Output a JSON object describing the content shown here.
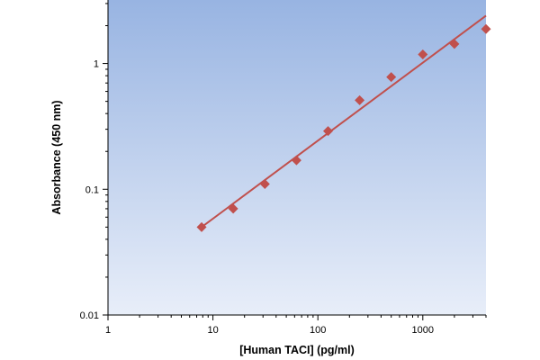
{
  "chart_data": {
    "type": "scatter",
    "title": "",
    "xlabel": "[Human TACI] (pg/ml)",
    "ylabel": "Absorbance (450 nm)",
    "x_scale": "log",
    "y_scale": "log",
    "xlim": [
      1,
      4000
    ],
    "ylim": [
      0.01,
      3.2
    ],
    "x_ticks": [
      1,
      10,
      100,
      1000
    ],
    "x_tick_labels": [
      "1",
      "10",
      "100",
      "1000"
    ],
    "y_ticks": [
      0.01,
      0.1,
      1
    ],
    "y_tick_labels": [
      "0.01",
      "0.1",
      "1"
    ],
    "grid": false,
    "legend": "none",
    "series": [
      {
        "x": [
          7.8,
          15.6,
          31.25,
          62.5,
          125,
          250,
          500,
          1000,
          2000,
          4000
        ],
        "y": [
          0.05,
          0.07,
          0.11,
          0.17,
          0.29,
          0.51,
          0.78,
          1.18,
          1.43,
          1.88
        ],
        "marker": "diamond",
        "color": "#c0504d"
      }
    ],
    "fit_line": {
      "type": "power",
      "x": [
        7.8,
        4000
      ],
      "y": [
        0.05,
        2.4
      ],
      "color": "#c0504d"
    },
    "plot_background": [
      "#98b4e2",
      "#e8eef9"
    ]
  }
}
